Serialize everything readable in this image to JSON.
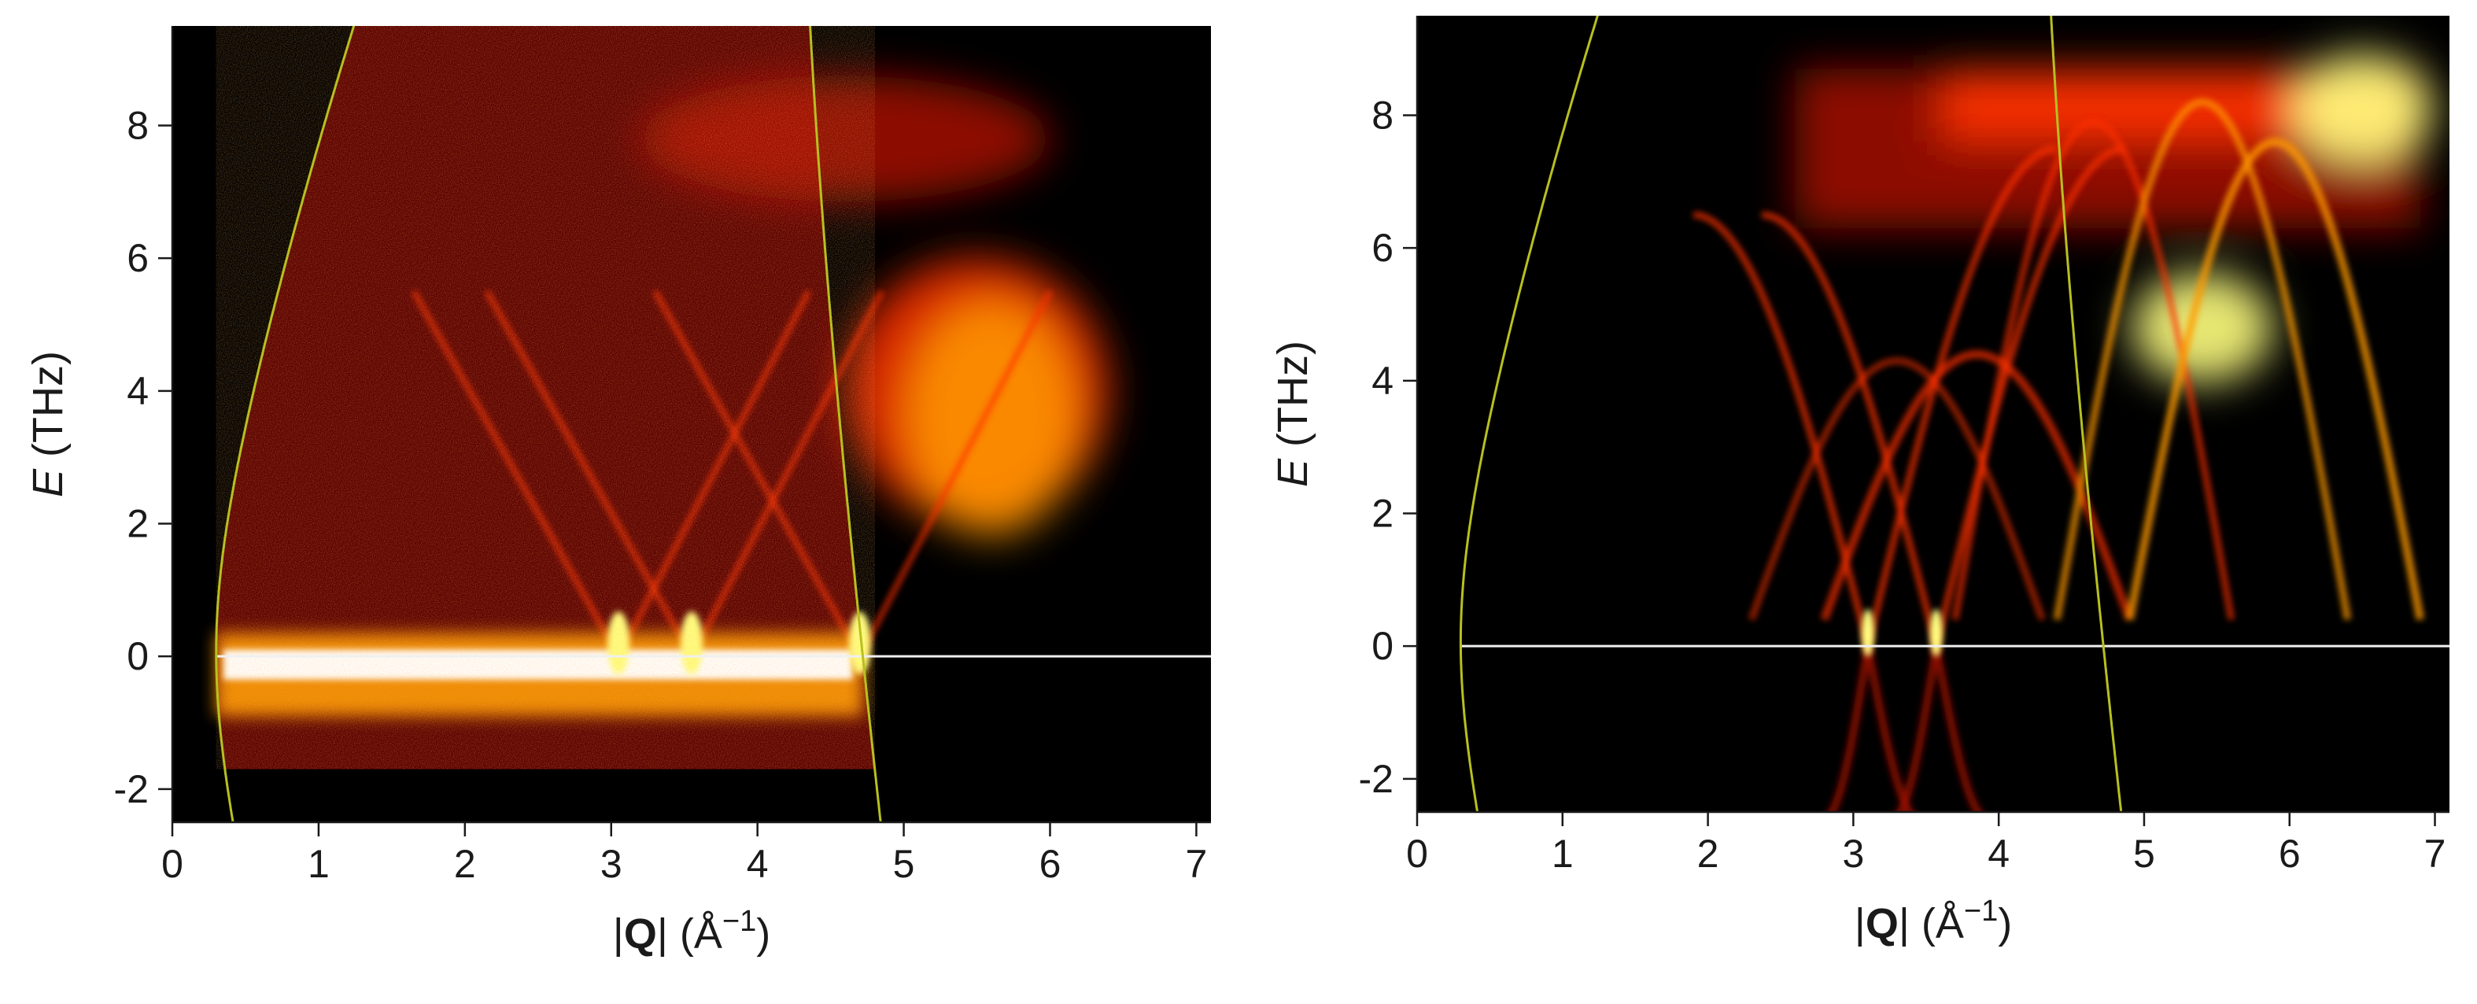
{
  "chart_data": [
    {
      "type": "heatmap",
      "title": "",
      "xlabel_parts": [
        "|",
        "Q",
        "|  (Å",
        "−1",
        ")"
      ],
      "ylabel_parts": [
        "E",
        " (THz)"
      ],
      "xlim": [
        0,
        7.1
      ],
      "ylim": [
        -2.5,
        9.5
      ],
      "xticks": [
        0,
        1,
        2,
        3,
        4,
        5,
        6,
        7
      ],
      "yticks": [
        -2,
        0,
        2,
        4,
        6,
        8
      ],
      "background": "#000000",
      "zero_line_color": "#f0f0f0",
      "kinematic_curve_color": "#b8c020",
      "kinematic_limit": {
        "k_min": 0.3,
        "k_max": 4.72
      },
      "energy_cutoff": -1.75,
      "colormap": [
        "#000000",
        "#5a0000",
        "#b01000",
        "#ff3000",
        "#ff9a00",
        "#ffff80",
        "#ffffff"
      ],
      "features": {
        "elastic_band": {
          "y": -0.15,
          "intensity": "saturated"
        },
        "bragg_points": [
          3.05,
          3.55,
          4.7
        ],
        "broad_high_intensity_region": {
          "x": [
            4.6,
            6.4
          ],
          "y": [
            2,
            6
          ]
        }
      }
    },
    {
      "type": "heatmap",
      "title": "",
      "xlabel_parts": [
        "|",
        "Q",
        "|  (Å",
        "−1",
        ")"
      ],
      "ylabel_parts": [
        "E",
        " (THz)"
      ],
      "xlim": [
        0,
        7.1
      ],
      "ylim": [
        -2.5,
        9.5
      ],
      "xticks": [
        0,
        1,
        2,
        3,
        4,
        5,
        6,
        7
      ],
      "yticks": [
        -2,
        0,
        2,
        4,
        6,
        8
      ],
      "background": "#000000",
      "zero_line_color": "#f0f0f0",
      "kinematic_curve_color": "#b8c020",
      "kinematic_limit": {
        "k_min": 0.3,
        "k_max": 4.72
      },
      "colormap": [
        "#000000",
        "#5a0000",
        "#b01000",
        "#ff3000",
        "#ff9a00",
        "#ffff80",
        "#ffffff"
      ],
      "features": {
        "bragg_points": [
          3.1,
          3.57
        ],
        "top_band": {
          "y": [
            7.6,
            8.7
          ]
        },
        "flat_edge_energy": 6.3,
        "hot_spots": [
          [
            5.4,
            4.8
          ],
          [
            6.5,
            8.1
          ]
        ]
      }
    }
  ]
}
